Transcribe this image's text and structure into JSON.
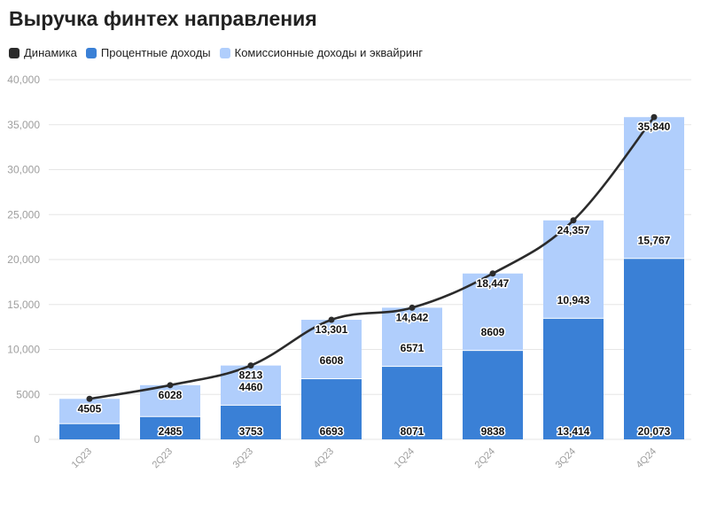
{
  "colors": {
    "line": "#2b2b2b",
    "interest": "#3a80d6",
    "commission": "#b0cefc",
    "grid": "#e6e6e6",
    "axis_text": "#9e9e9e",
    "label_text": "#111111"
  },
  "chart_data": {
    "type": "bar",
    "stacked": true,
    "title": "Выручка финтех направления",
    "legend": [
      "Динамика",
      "Процентные доходы",
      "Комиссионные доходы и эквайринг"
    ],
    "legend_position": "top-left",
    "grid": true,
    "categories": [
      "1Q23",
      "2Q23",
      "3Q23",
      "4Q23",
      "1Q24",
      "2Q24",
      "3Q24",
      "4Q24"
    ],
    "yticks": [
      0,
      5000,
      10000,
      15000,
      20000,
      25000,
      30000,
      35000,
      40000
    ],
    "ytick_labels": [
      "0",
      "5000",
      "10,000",
      "15,000",
      "20,000",
      "25,000",
      "30,000",
      "35,000",
      "40,000"
    ],
    "ylim": [
      0,
      40000
    ],
    "series": [
      {
        "name": "Процентные доходы",
        "kind": "bar",
        "values": [
          1700,
          2485,
          3753,
          6693,
          8071,
          9838,
          13414,
          20073
        ],
        "labels": [
          "",
          "2485",
          "3753",
          "6693",
          "8071",
          "9838",
          "13,414",
          "20,073"
        ]
      },
      {
        "name": "Комиссионные доходы и эквайринг",
        "kind": "bar",
        "values": [
          2805,
          3543,
          4460,
          6608,
          6571,
          8609,
          10943,
          15767
        ],
        "labels": [
          "",
          "",
          "4460",
          "6608",
          "6571",
          "8609",
          "10,943",
          "15,767"
        ]
      },
      {
        "name": "Динамика",
        "kind": "line",
        "values": [
          4505,
          6028,
          8213,
          13301,
          14642,
          18447,
          24357,
          35840
        ],
        "labels": [
          "4505",
          "6028",
          "8213",
          "13,301",
          "14,642",
          "18,447",
          "24,357",
          "35,840"
        ]
      }
    ]
  }
}
